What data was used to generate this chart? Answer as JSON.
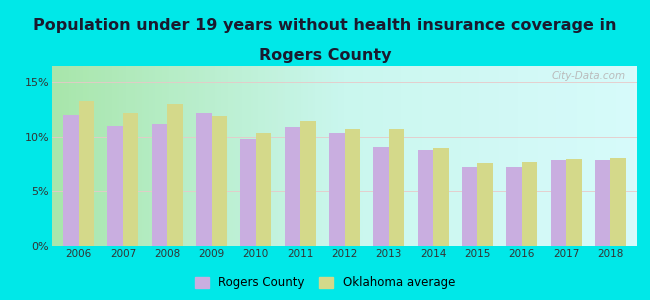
{
  "title_line1": "Population under 19 years without health insurance coverage in",
  "title_line2": "Rogers County",
  "years": [
    2006,
    2007,
    2008,
    2009,
    2010,
    2011,
    2012,
    2013,
    2014,
    2015,
    2016,
    2017,
    2018
  ],
  "rogers_county": [
    12.0,
    11.0,
    11.2,
    12.2,
    9.8,
    10.9,
    10.4,
    9.1,
    8.8,
    7.2,
    7.2,
    7.9,
    7.9
  ],
  "oklahoma_avg": [
    13.3,
    12.2,
    13.0,
    11.9,
    10.4,
    11.5,
    10.7,
    10.7,
    9.0,
    7.6,
    7.7,
    8.0,
    8.1
  ],
  "rogers_color": "#c9aee0",
  "oklahoma_color": "#d4d98a",
  "background_color": "#00e8e8",
  "title_fontsize": 11.5,
  "title_color": "#1a1a2e",
  "legend_rogers": "Rogers County",
  "legend_oklahoma": "Oklahoma average",
  "yticks": [
    0,
    5,
    10,
    15
  ],
  "ylim": [
    0,
    16.5
  ],
  "bar_width": 0.35,
  "watermark": "City-Data.com",
  "legend_marker_color_rogers": "#e0aee0",
  "legend_marker_color_oklahoma": "#d4d98a"
}
